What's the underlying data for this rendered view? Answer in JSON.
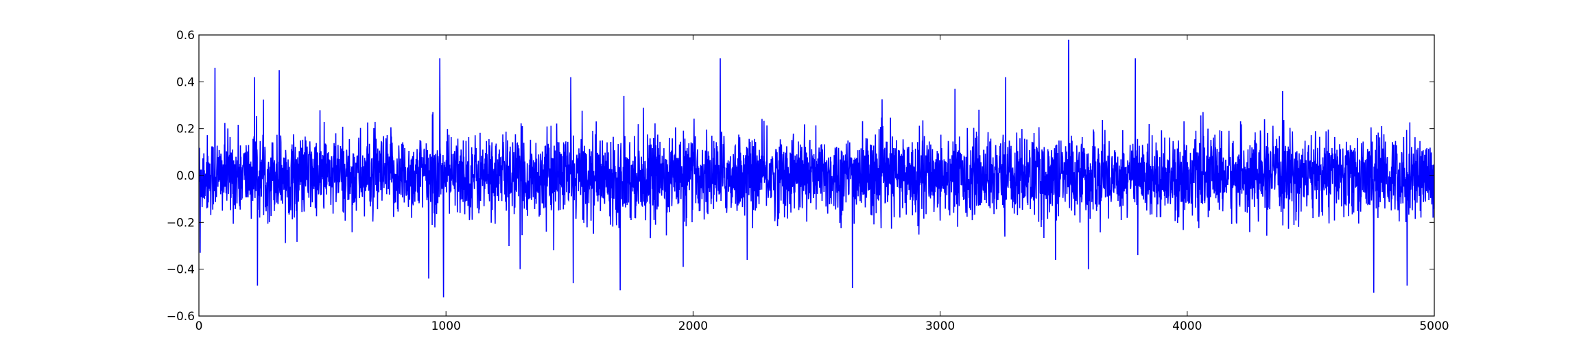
{
  "chart_data": {
    "type": "line",
    "title": "",
    "xlabel": "",
    "ylabel": "",
    "xlim": [
      0,
      5000
    ],
    "ylim": [
      -0.6,
      0.6
    ],
    "x_ticks": [
      0,
      1000,
      2000,
      3000,
      4000,
      5000
    ],
    "y_ticks": [
      -0.6,
      -0.4,
      -0.2,
      0.0,
      0.2,
      0.4,
      0.6
    ],
    "x_tick_labels": [
      "0",
      "1000",
      "2000",
      "3000",
      "4000",
      "5000"
    ],
    "y_tick_labels": [
      "−0.6",
      "−0.4",
      "−0.2",
      "0.0",
      "0.2",
      "0.4",
      "0.6"
    ],
    "grid": false,
    "legend": "none",
    "line_color": "#0000ff",
    "series": [
      {
        "n_points": 5000,
        "x_start": 0,
        "x_step": 1,
        "typical_range": [
          -0.2,
          0.2
        ],
        "spikes": [
          {
            "x": 5,
            "y": -0.33
          },
          {
            "x": 65,
            "y": 0.46
          },
          {
            "x": 225,
            "y": 0.42
          },
          {
            "x": 237,
            "y": -0.47
          },
          {
            "x": 325,
            "y": 0.45
          },
          {
            "x": 930,
            "y": -0.44
          },
          {
            "x": 975,
            "y": 0.5
          },
          {
            "x": 990,
            "y": -0.52
          },
          {
            "x": 1300,
            "y": -0.4
          },
          {
            "x": 1505,
            "y": 0.42
          },
          {
            "x": 1515,
            "y": -0.46
          },
          {
            "x": 1705,
            "y": -0.49
          },
          {
            "x": 1720,
            "y": 0.34
          },
          {
            "x": 1960,
            "y": -0.39
          },
          {
            "x": 2110,
            "y": 0.5
          },
          {
            "x": 2645,
            "y": -0.48
          },
          {
            "x": 3060,
            "y": 0.37
          },
          {
            "x": 3265,
            "y": 0.42
          },
          {
            "x": 3520,
            "y": 0.58
          },
          {
            "x": 3600,
            "y": -0.4
          },
          {
            "x": 3790,
            "y": 0.5
          },
          {
            "x": 3800,
            "y": -0.34
          },
          {
            "x": 4755,
            "y": -0.5
          },
          {
            "x": 4890,
            "y": -0.47
          }
        ]
      }
    ]
  }
}
